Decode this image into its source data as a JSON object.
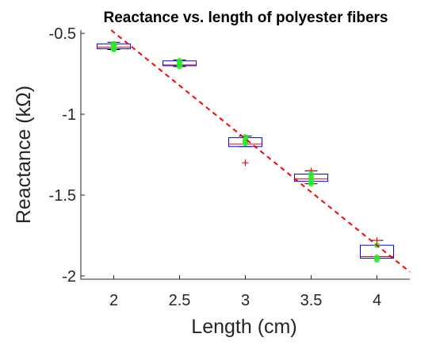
{
  "chart_data": {
    "type": "box",
    "title": "Reactance vs. length of polyester fibers",
    "xlabel": "Length (cm)",
    "ylabel": "Reactance (kΩ)",
    "xlim": [
      1.75,
      4.25
    ],
    "ylim": [
      -2.02,
      -0.48
    ],
    "xticks": [
      2,
      2.5,
      3,
      3.5,
      4
    ],
    "xtick_labels": [
      "2",
      "2.5",
      "3",
      "3.5",
      "4"
    ],
    "yticks": [
      -0.5,
      -1,
      -1.5,
      -2
    ],
    "ytick_labels": [
      "-0.5",
      "-1",
      "-1.5",
      "-2"
    ],
    "grid": false,
    "boxes": [
      {
        "x": 2,
        "q1": -0.595,
        "median": -0.585,
        "q3": -0.565,
        "whisker_low": -0.6,
        "whisker_high": -0.555
      },
      {
        "x": 2.5,
        "q1": -0.7,
        "median": -0.695,
        "q3": -0.67,
        "whisker_low": -0.705,
        "whisker_high": -0.665
      },
      {
        "x": 3,
        "q1": -1.2,
        "median": -1.185,
        "q3": -1.145,
        "whisker_low": -1.2,
        "whisker_high": -1.135
      },
      {
        "x": 3.5,
        "q1": -1.415,
        "median": -1.4,
        "q3": -1.37,
        "whisker_low": -1.43,
        "whisker_high": -1.35
      },
      {
        "x": 4,
        "q1": -1.89,
        "median": -1.88,
        "q3": -1.81,
        "whisker_low": -1.89,
        "whisker_high": -1.78
      }
    ],
    "outliers": [
      {
        "x": 3,
        "y": -1.3
      },
      {
        "x": 3.5,
        "y": -1.35
      },
      {
        "x": 4,
        "y": -1.78
      }
    ],
    "points": [
      {
        "x": 2,
        "y": -0.565
      },
      {
        "x": 2,
        "y": -0.575
      },
      {
        "x": 2,
        "y": -0.585
      },
      {
        "x": 2,
        "y": -0.595
      },
      {
        "x": 2,
        "y": -0.6
      },
      {
        "x": 2.5,
        "y": -0.67
      },
      {
        "x": 2.5,
        "y": -0.68
      },
      {
        "x": 2.5,
        "y": -0.695
      },
      {
        "x": 2.5,
        "y": -0.705
      },
      {
        "x": 3,
        "y": -1.14
      },
      {
        "x": 3,
        "y": -1.155
      },
      {
        "x": 3,
        "y": -1.17
      },
      {
        "x": 3,
        "y": -1.18
      },
      {
        "x": 3.5,
        "y": -1.37
      },
      {
        "x": 3.5,
        "y": -1.39
      },
      {
        "x": 3.5,
        "y": -1.41
      },
      {
        "x": 3.5,
        "y": -1.43
      },
      {
        "x": 4,
        "y": -1.81
      },
      {
        "x": 4,
        "y": -1.885
      },
      {
        "x": 4,
        "y": -1.9
      }
    ],
    "fit_line": {
      "x": [
        1.98,
        4.25
      ],
      "y": [
        -0.47,
        -1.975
      ]
    },
    "colors": {
      "box": "#0000ff",
      "median": "#ff0000",
      "outlier": "#ff0000",
      "points": "#22ee22",
      "fit_line": "#ff0000",
      "axis": "#262626"
    }
  }
}
